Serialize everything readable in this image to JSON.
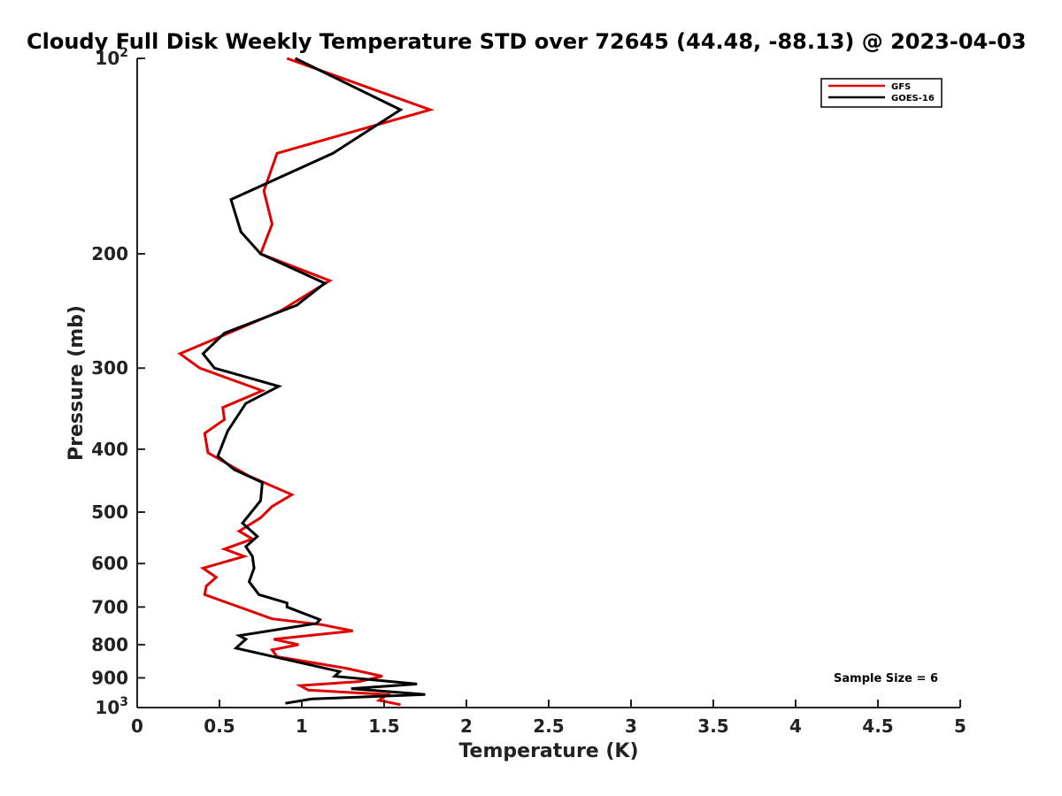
{
  "chart_data": {
    "type": "line",
    "title": "Cloudy Full Disk Weekly Temperature STD over 72645 (44.48, -88.13) @ 2023-04-03",
    "xlabel": "Temperature (K)",
    "ylabel": "Pressure (mb)",
    "xlim": [
      0,
      5
    ],
    "ylim": [
      1000,
      100
    ],
    "yscale": "log",
    "y_reversed": true,
    "x_ticks": [
      "0",
      "0.5",
      "1",
      "1.5",
      "2",
      "2.5",
      "3",
      "3.5",
      "4",
      "4.5",
      "5"
    ],
    "y_ticks": [
      {
        "value": 100,
        "label": "10",
        "sup": "2"
      },
      {
        "value": 200,
        "label": "200",
        "sup": ""
      },
      {
        "value": 300,
        "label": "300",
        "sup": ""
      },
      {
        "value": 400,
        "label": "400",
        "sup": ""
      },
      {
        "value": 500,
        "label": "500",
        "sup": ""
      },
      {
        "value": 600,
        "label": "600",
        "sup": ""
      },
      {
        "value": 700,
        "label": "700",
        "sup": ""
      },
      {
        "value": 800,
        "label": "800",
        "sup": ""
      },
      {
        "value": 900,
        "label": "900",
        "sup": ""
      },
      {
        "value": 1000,
        "label": "10",
        "sup": "3"
      }
    ],
    "grid": false,
    "legend_position": "top-right",
    "series": [
      {
        "name": "GFS",
        "color": "#e00000",
        "points": [
          [
            0.91,
            100
          ],
          [
            1.78,
            120
          ],
          [
            0.85,
            140
          ],
          [
            0.77,
            160
          ],
          [
            0.82,
            180
          ],
          [
            0.75,
            200
          ],
          [
            1.17,
            220
          ],
          [
            0.87,
            245
          ],
          [
            0.48,
            270
          ],
          [
            0.26,
            285
          ],
          [
            0.38,
            300
          ],
          [
            0.76,
            325
          ],
          [
            0.52,
            345
          ],
          [
            0.53,
            360
          ],
          [
            0.41,
            378
          ],
          [
            0.43,
            405
          ],
          [
            0.68,
            440
          ],
          [
            0.94,
            470
          ],
          [
            0.82,
            490
          ],
          [
            0.75,
            510
          ],
          [
            0.62,
            535
          ],
          [
            0.7,
            550
          ],
          [
            0.53,
            570
          ],
          [
            0.65,
            585
          ],
          [
            0.4,
            610
          ],
          [
            0.48,
            630
          ],
          [
            0.42,
            650
          ],
          [
            0.41,
            670
          ],
          [
            0.82,
            730
          ],
          [
            1.12,
            745
          ],
          [
            1.31,
            762
          ],
          [
            0.83,
            785
          ],
          [
            0.98,
            800
          ],
          [
            0.82,
            815
          ],
          [
            0.85,
            835
          ],
          [
            1.27,
            870
          ],
          [
            1.49,
            895
          ],
          [
            1.35,
            912
          ],
          [
            0.99,
            925
          ],
          [
            1.04,
            940
          ],
          [
            1.52,
            955
          ],
          [
            1.47,
            975
          ],
          [
            1.6,
            990
          ]
        ]
      },
      {
        "name": "GOES-16",
        "color": "#000000",
        "points": [
          [
            0.96,
            100
          ],
          [
            1.6,
            120
          ],
          [
            1.19,
            140
          ],
          [
            0.57,
            165
          ],
          [
            0.63,
            185
          ],
          [
            0.75,
            200
          ],
          [
            1.14,
            222
          ],
          [
            0.97,
            240
          ],
          [
            0.53,
            265
          ],
          [
            0.4,
            285
          ],
          [
            0.47,
            300
          ],
          [
            0.86,
            320
          ],
          [
            0.66,
            340
          ],
          [
            0.55,
            375
          ],
          [
            0.49,
            410
          ],
          [
            0.59,
            430
          ],
          [
            0.76,
            450
          ],
          [
            0.75,
            480
          ],
          [
            0.64,
            520
          ],
          [
            0.73,
            545
          ],
          [
            0.66,
            565
          ],
          [
            0.7,
            585
          ],
          [
            0.71,
            610
          ],
          [
            0.68,
            640
          ],
          [
            0.74,
            670
          ],
          [
            0.91,
            690
          ],
          [
            0.91,
            700
          ],
          [
            1.11,
            732
          ],
          [
            1.09,
            742
          ],
          [
            0.62,
            775
          ],
          [
            0.66,
            785
          ],
          [
            0.6,
            810
          ],
          [
            1.23,
            880
          ],
          [
            1.2,
            895
          ],
          [
            1.7,
            920
          ],
          [
            1.3,
            935
          ],
          [
            1.75,
            955
          ],
          [
            1.06,
            970
          ],
          [
            0.9,
            985
          ]
        ]
      }
    ],
    "annotations": [
      "Sample Size = 6"
    ]
  }
}
